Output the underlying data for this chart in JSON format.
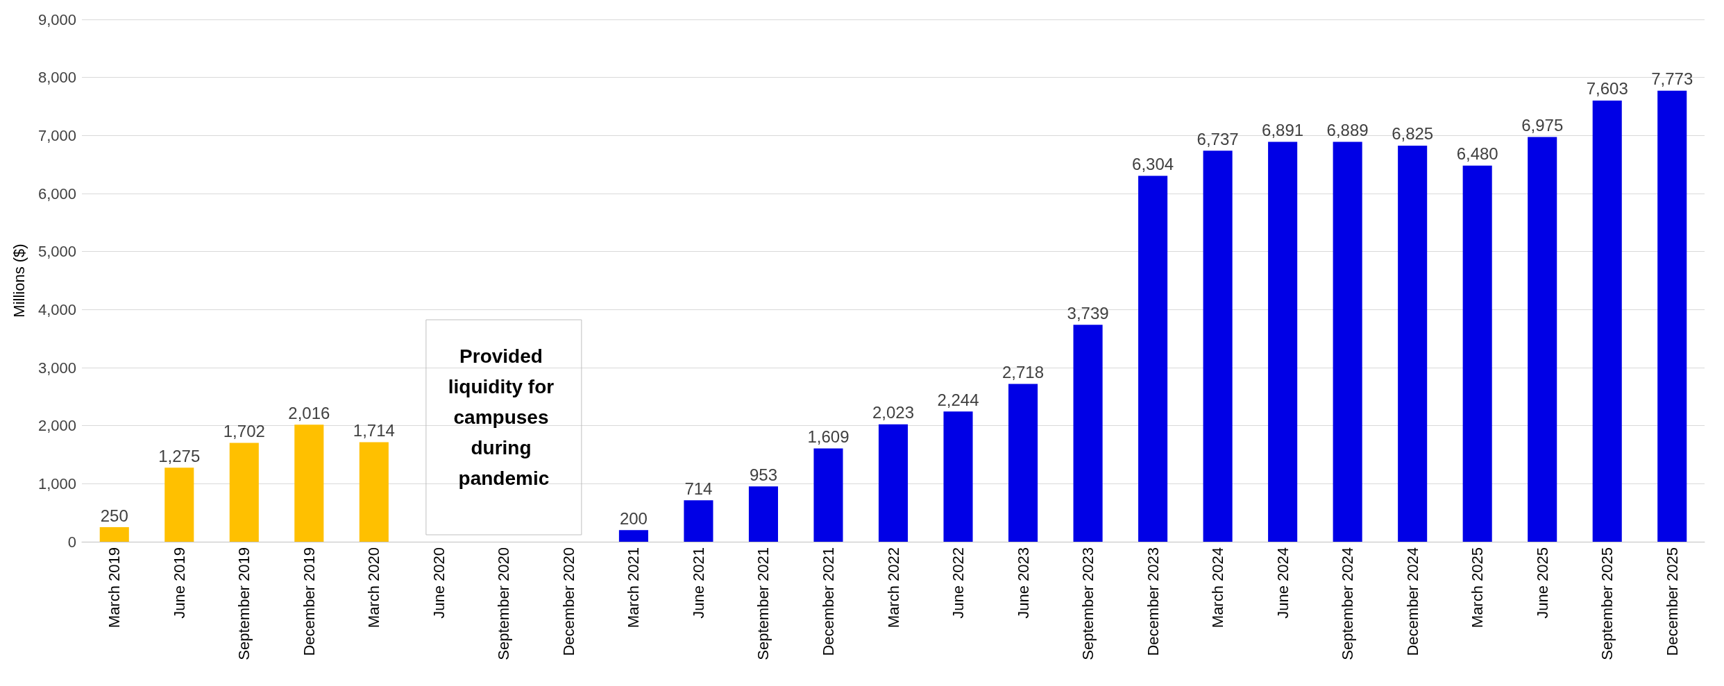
{
  "chart_data": {
    "type": "bar",
    "ylabel": "Millions ($)",
    "categories": [
      "March 2019",
      "June 2019",
      "September 2019",
      "December 2019",
      "March 2020",
      "June 2020",
      "September 2020",
      "December 2020",
      "March 2021",
      "June 2021",
      "September 2021",
      "December 2021",
      "March 2022",
      "June 2022",
      "June 2023",
      "September 2023",
      "December 2023",
      "March 2024",
      "June 2024",
      "September 2024",
      "December 2024",
      "March 2025",
      "June 2025",
      "September 2025",
      "December 2025"
    ],
    "values": [
      250,
      1275,
      1702,
      2016,
      1714,
      null,
      null,
      null,
      200,
      714,
      953,
      1609,
      2023,
      2244,
      2718,
      3739,
      6304,
      6737,
      6891,
      6889,
      6825,
      6480,
      6975,
      7603,
      7773
    ],
    "value_labels": [
      "250",
      "1,275",
      "1,702",
      "2,016",
      "1,714",
      null,
      null,
      null,
      "200",
      "714",
      "953",
      "1,609",
      "2,023",
      "2,244",
      "2,718",
      "3,739",
      "6,304",
      "6,737",
      "6,891",
      "6,889",
      "6,825",
      "6,480",
      "6,975",
      "7,603",
      "7,773"
    ],
    "colors": [
      "#ffc000",
      "#ffc000",
      "#ffc000",
      "#ffc000",
      "#ffc000",
      null,
      null,
      null,
      "#0000e6",
      "#0000e6",
      "#0000e6",
      "#0000e6",
      "#0000e6",
      "#0000e6",
      "#0000e6",
      "#0000e6",
      "#0000e6",
      "#0000e6",
      "#0000e6",
      "#0000e6",
      "#0000e6",
      "#0000e6",
      "#0000e6",
      "#0000e6",
      "#0000e6"
    ],
    "ylim": [
      0,
      9000
    ],
    "yticks": [
      0,
      {
        "value": 1000,
        "label": "1,000"
      },
      {
        "value": 2000,
        "label": "2,000"
      },
      {
        "value": 3000,
        "label": "3,000"
      },
      {
        "value": 4000,
        "label": "4,000"
      },
      {
        "value": 5000,
        "label": "5,000"
      },
      {
        "value": 6000,
        "label": "6,000"
      },
      {
        "value": 7000,
        "label": "7,000"
      },
      {
        "value": 8000,
        "label": "8,000"
      },
      {
        "value": 9000,
        "label": "9,000"
      }
    ],
    "grid": true,
    "annotations": [
      "Provided liquidity for campuses during pandemic"
    ]
  }
}
